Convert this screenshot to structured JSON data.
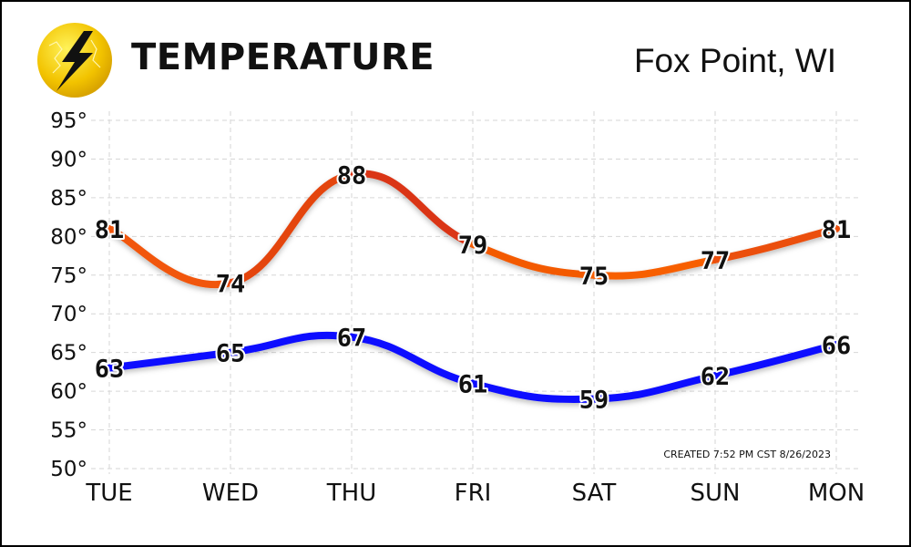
{
  "header": {
    "title": "TEMPERATURE",
    "location": "Fox Point, WI",
    "logo_icon": "lightning-bolt-icon"
  },
  "footer": {
    "created": "CREATED 7:52 PM CST 8/26/2023"
  },
  "chart_data": {
    "type": "line",
    "categories": [
      "TUE",
      "WED",
      "THU",
      "FRI",
      "SAT",
      "SUN",
      "MON"
    ],
    "series": [
      {
        "key": "high",
        "values": [
          81,
          74,
          88,
          79,
          75,
          77,
          81
        ],
        "color_low": "#ff6a00",
        "color_high": "#c81e1e"
      },
      {
        "key": "low",
        "values": [
          63,
          65,
          67,
          61,
          59,
          62,
          66
        ],
        "color": "#1010ff"
      }
    ],
    "ylim": [
      50,
      95
    ],
    "yticks": [
      50,
      55,
      60,
      65,
      70,
      75,
      80,
      85,
      90,
      95
    ],
    "ytick_suffix": "°",
    "grid": true
  }
}
